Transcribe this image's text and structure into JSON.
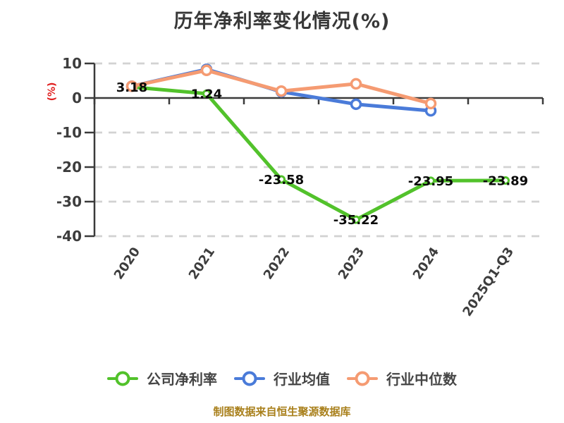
{
  "footer": {
    "text": "制图数据来自恒生聚源数据库",
    "color": "#a9801c"
  },
  "chart_data": {
    "type": "line",
    "title": "历年净利率变化情况(%)",
    "categories": [
      "2020",
      "2021",
      "2022",
      "2023",
      "2024",
      "2025Q1-Q3"
    ],
    "series": [
      {
        "name": "公司净利率",
        "color": "#52c22b",
        "values": [
          3.18,
          1.24,
          -23.58,
          -35.22,
          -23.95,
          -23.89
        ],
        "data_labels": true
      },
      {
        "name": "行业均值",
        "color": "#4a7bd9",
        "values": [
          3.4,
          8.3,
          1.8,
          -1.8,
          -3.7,
          null
        ],
        "data_labels": false
      },
      {
        "name": "行业中位数",
        "color": "#f59b72",
        "values": [
          3.4,
          8.0,
          2.0,
          4.1,
          -1.6,
          null
        ],
        "data_labels": false
      }
    ],
    "data_label_values": [
      "3.18",
      "1.24",
      "-23.58",
      "-35.22",
      "-23.95",
      "-23.89"
    ],
    "ylabel": "(%)",
    "ylabel_color": "#e02020",
    "ylim": [
      -40,
      10
    ],
    "yticks": [
      10,
      0,
      -10,
      -20,
      -30,
      -40
    ],
    "grid": "dashed-horizontal",
    "zero_axis": true,
    "legend_position": "bottom",
    "colors": {
      "axis": "#3a3a3a",
      "gridline": "#d2d2d2",
      "tick_label": "#3d3d3d",
      "data_label": "#0a0a0a"
    }
  }
}
